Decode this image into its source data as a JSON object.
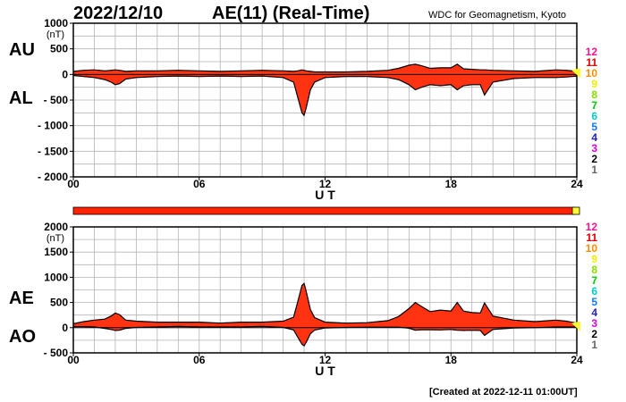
{
  "header": {
    "date": "2022/12/10",
    "title": "AE(11) (Real-Time)",
    "source": "WDC for Geomagnetism, Kyoto",
    "created": "[Created at 2022-12-11 01:00UT]"
  },
  "colors": {
    "fill": "#ff3311",
    "outline": "#000000",
    "grid": "#b4b4b4",
    "status_bar": "#ff2200",
    "status_bar_end": "#ffff33",
    "station_counts": [
      "#ff1493",
      "#dd0000",
      "#ff8c00",
      "#eeee00",
      "#88dd00",
      "#00cc00",
      "#00cccc",
      "#1177ff",
      "#2222cc",
      "#dd00dd",
      "#000000",
      "#666666",
      "#cccccc"
    ]
  },
  "station_counts": [
    "12",
    "11",
    "10",
    "9",
    "8",
    "7",
    "6",
    "5",
    "4",
    "3",
    "2",
    "1"
  ],
  "chart_data": [
    {
      "type": "area",
      "name": "AU/AL panel",
      "side_labels": [
        "AU",
        "AL"
      ],
      "y_unit": "(nT)",
      "ylim": [
        -2000,
        1000
      ],
      "yticks": [
        1000,
        500,
        0,
        -500,
        -1000,
        -1500,
        -2000
      ],
      "ytick_labels": [
        "1000",
        "500",
        "0",
        "- 500",
        "- 1000",
        "- 1500",
        "- 2000"
      ],
      "xlim": [
        0,
        24
      ],
      "xticks": [
        0,
        6,
        12,
        18,
        24
      ],
      "xtick_labels": [
        "00",
        "06",
        "12",
        "18",
        "24"
      ],
      "xlabel": "U T",
      "grid": true,
      "x": [
        0,
        0.5,
        1,
        1.5,
        1.8,
        2,
        2.2,
        2.5,
        3,
        4,
        5,
        6,
        7,
        8,
        9,
        10,
        10.5,
        10.7,
        10.9,
        11,
        11.1,
        11.3,
        11.5,
        12,
        13,
        14,
        15,
        15.5,
        16,
        16.3,
        16.6,
        17,
        17.5,
        18,
        18.3,
        18.6,
        19,
        19.4,
        19.6,
        20,
        21,
        22,
        23,
        23.5,
        24
      ],
      "series": [
        {
          "name": "AU",
          "values": [
            60,
            80,
            90,
            70,
            80,
            90,
            80,
            60,
            70,
            70,
            80,
            70,
            60,
            70,
            80,
            70,
            60,
            70,
            90,
            80,
            70,
            60,
            50,
            50,
            50,
            60,
            80,
            120,
            180,
            200,
            170,
            120,
            130,
            130,
            200,
            110,
            100,
            90,
            90,
            80,
            70,
            60,
            90,
            80,
            60
          ]
        },
        {
          "name": "AL",
          "values": [
            -20,
            -40,
            -60,
            -100,
            -150,
            -200,
            -180,
            -90,
            -60,
            -40,
            -30,
            -40,
            -30,
            -40,
            -30,
            -60,
            -150,
            -450,
            -750,
            -800,
            -650,
            -300,
            -150,
            -60,
            -40,
            -40,
            -60,
            -100,
            -200,
            -300,
            -250,
            -200,
            -220,
            -200,
            -300,
            -220,
            -200,
            -200,
            -400,
            -150,
            -80,
            -60,
            -60,
            -50,
            -30
          ]
        }
      ]
    },
    {
      "type": "area",
      "name": "AE/AO panel",
      "side_labels": [
        "AE",
        "AO"
      ],
      "y_unit": "(nT)",
      "ylim": [
        -500,
        2000
      ],
      "yticks": [
        2000,
        1500,
        1000,
        500,
        0,
        -500
      ],
      "ytick_labels": [
        "2000",
        "1500",
        "1000",
        "500",
        "0",
        "- 500"
      ],
      "xlim": [
        0,
        24
      ],
      "xticks": [
        0,
        6,
        12,
        18,
        24
      ],
      "xtick_labels": [
        "00",
        "06",
        "12",
        "18",
        "24"
      ],
      "xlabel": "U T",
      "grid": true,
      "x": [
        0,
        0.5,
        1,
        1.5,
        1.8,
        2,
        2.2,
        2.5,
        3,
        4,
        5,
        6,
        7,
        8,
        9,
        10,
        10.5,
        10.7,
        10.9,
        11,
        11.1,
        11.3,
        11.5,
        12,
        13,
        14,
        15,
        15.5,
        16,
        16.3,
        16.6,
        17,
        17.5,
        18,
        18.3,
        18.6,
        19,
        19.4,
        19.6,
        20,
        21,
        22,
        23,
        23.5,
        24
      ],
      "series": [
        {
          "name": "AE",
          "values": [
            80,
            120,
            150,
            170,
            230,
            290,
            260,
            150,
            130,
            110,
            110,
            110,
            90,
            110,
            110,
            130,
            210,
            520,
            840,
            880,
            720,
            360,
            200,
            110,
            90,
            100,
            140,
            220,
            380,
            500,
            420,
            320,
            350,
            330,
            500,
            330,
            300,
            290,
            490,
            230,
            150,
            120,
            150,
            130,
            90
          ]
        },
        {
          "name": "AO",
          "values": [
            20,
            20,
            15,
            -15,
            -35,
            -55,
            -50,
            -15,
            5,
            15,
            25,
            15,
            15,
            15,
            25,
            5,
            -45,
            -190,
            -330,
            -360,
            -290,
            -120,
            -50,
            -5,
            5,
            10,
            10,
            10,
            -10,
            -50,
            -40,
            -40,
            -45,
            -35,
            -50,
            -55,
            -50,
            -55,
            -155,
            -35,
            -5,
            0,
            15,
            15,
            15
          ]
        }
      ]
    }
  ]
}
